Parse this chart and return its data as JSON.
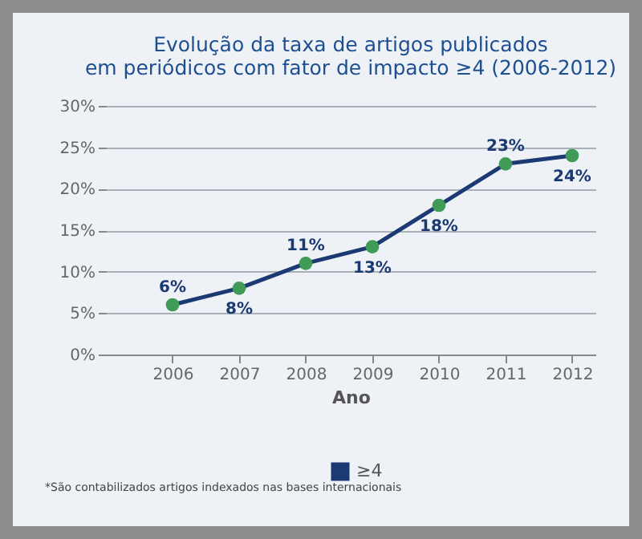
{
  "chart_data": {
    "type": "line",
    "title": "Evolução da taxa de artigos publicados\nem periódicos com fator de impacto ≥4 (2006-2012)",
    "xlabel": "Ano",
    "categories": [
      "2006",
      "2007",
      "2008",
      "2009",
      "2010",
      "2011",
      "2012"
    ],
    "series": [
      {
        "name": "≥4",
        "color": "#1b3a73",
        "values": [
          6,
          8,
          11,
          13,
          18,
          23,
          24
        ],
        "value_labels": [
          "6%",
          "8%",
          "11%",
          "13%",
          "18%",
          "23%",
          "24%"
        ]
      }
    ],
    "ylim": [
      0,
      30
    ],
    "yticks": [
      {
        "value": 0,
        "label": "0%"
      },
      {
        "value": 5,
        "label": "5%"
      },
      {
        "value": 10,
        "label": "10%"
      },
      {
        "value": 15,
        "label": "15%"
      },
      {
        "value": 20,
        "label": "20%"
      },
      {
        "value": 25,
        "label": "25%"
      },
      {
        "value": 30,
        "label": "30%"
      }
    ],
    "grid": "y",
    "legend": "bottom",
    "marker": "circle",
    "line_style": "solid",
    "annotations": [
      "*São contabilizados artigos indexados nas bases internacionais"
    ]
  }
}
